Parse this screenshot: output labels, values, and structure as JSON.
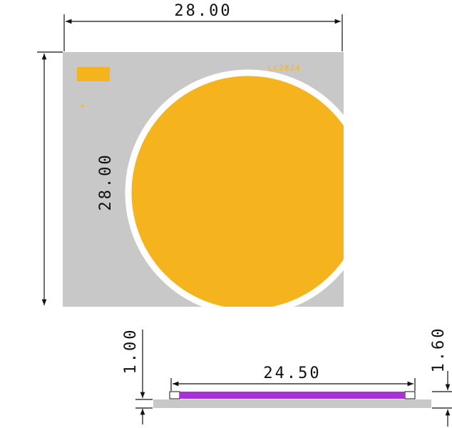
{
  "drawing": {
    "label": "LC2824",
    "dimensions": {
      "top_width": "28.00",
      "left_height": "28.00",
      "side_thickness": "1.00",
      "total_thickness": "1.60",
      "emitter_width": "24.50"
    }
  }
}
